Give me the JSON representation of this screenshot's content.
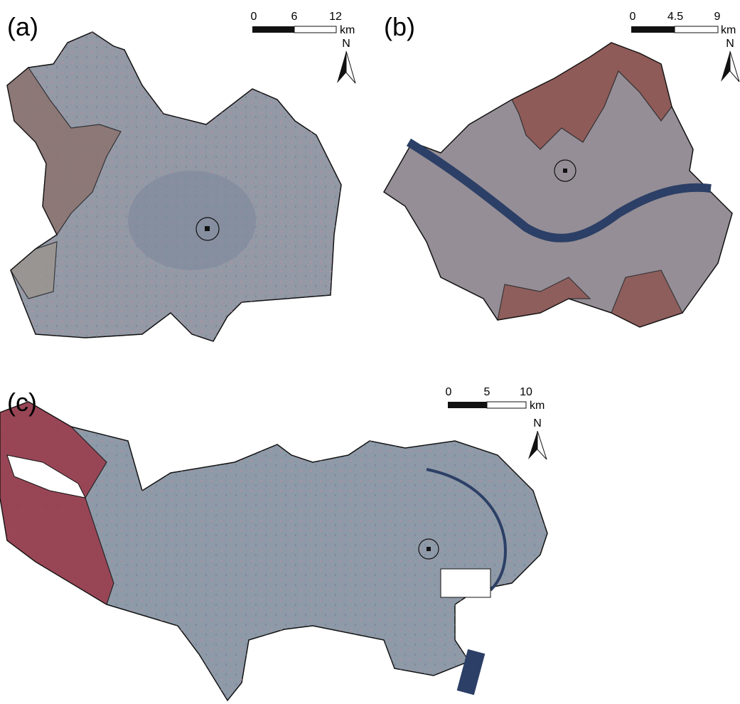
{
  "panels": [
    {
      "label": "(a)",
      "scale": {
        "ticks": [
          0,
          6,
          12
        ],
        "unit": "km"
      },
      "north": "N"
    },
    {
      "label": "(b)",
      "scale": {
        "ticks": [
          0,
          4.5,
          9
        ],
        "unit": "km"
      },
      "north": "N"
    },
    {
      "label": "(c)",
      "scale": {
        "ticks": [
          0,
          5,
          10
        ],
        "unit": "km"
      },
      "north": "N"
    }
  ]
}
